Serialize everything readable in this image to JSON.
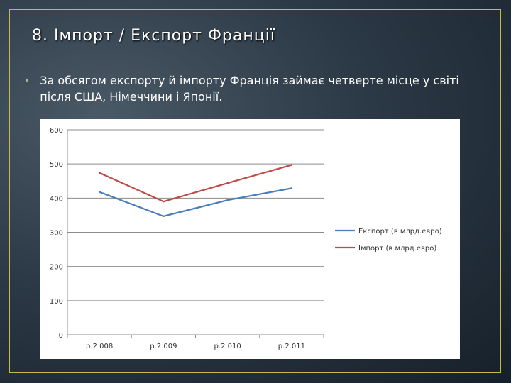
{
  "slide": {
    "title": "8. Імпорт / Експорт Франції",
    "bullet_text": "За обсягом експорту й імпорту Франція займає четверте місце у світі після США, Німеччини і Японії."
  },
  "chart_data": {
    "type": "line",
    "categories": [
      "р.2 008",
      "р.2 009",
      "р.2 010",
      "р.2 011"
    ],
    "series": [
      {
        "name": "Експорт (в млрд.евро)",
        "values": [
          418,
          347,
          394,
          429
        ],
        "color": "#4a7ebb"
      },
      {
        "name": "Імпорт (в млрд.евро)",
        "values": [
          474,
          390,
          444,
          497
        ],
        "color": "#be4b48"
      }
    ],
    "ylim": [
      0,
      600
    ],
    "yticks": [
      0,
      100,
      200,
      300,
      400,
      500,
      600
    ],
    "grid": true,
    "legend": "right"
  }
}
